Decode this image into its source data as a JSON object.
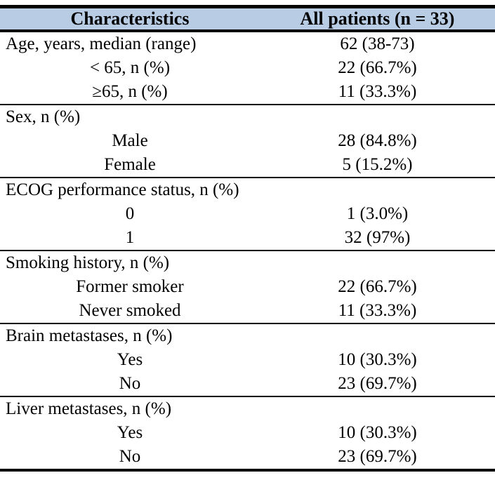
{
  "colors": {
    "header_bg": "#b8cce4",
    "border": "#000000",
    "text": "#000000"
  },
  "table": {
    "header": {
      "characteristics": "Characteristics",
      "all_patients": "All patients (n = 33)"
    },
    "sections": [
      {
        "rows": [
          {
            "label": "Age, years, median (range)",
            "value": "62 (38-73)",
            "sub": false
          },
          {
            "label": "< 65, n (%)",
            "value": "22 (66.7%)",
            "sub": true
          },
          {
            "label": "≥65, n (%)",
            "value": "11 (33.3%)",
            "sub": true
          }
        ]
      },
      {
        "rows": [
          {
            "label": "Sex, n (%)",
            "value": "",
            "sub": false
          },
          {
            "label": "Male",
            "value": "28 (84.8%)",
            "sub": true
          },
          {
            "label": "Female",
            "value": "5 (15.2%)",
            "sub": true
          }
        ]
      },
      {
        "rows": [
          {
            "label": "ECOG performance status, n (%)",
            "value": "",
            "sub": false
          },
          {
            "label": "0",
            "value": "1 (3.0%)",
            "sub": true
          },
          {
            "label": "1",
            "value": "32 (97%)",
            "sub": true
          }
        ]
      },
      {
        "rows": [
          {
            "label": "Smoking history, n (%)",
            "value": "",
            "sub": false
          },
          {
            "label": "Former smoker",
            "value": "22 (66.7%)",
            "sub": true
          },
          {
            "label": "Never smoked",
            "value": "11 (33.3%)",
            "sub": true
          }
        ]
      },
      {
        "rows": [
          {
            "label": "Brain metastases, n (%)",
            "value": "",
            "sub": false
          },
          {
            "label": "Yes",
            "value": "10 (30.3%)",
            "sub": true
          },
          {
            "label": "No",
            "value": "23 (69.7%)",
            "sub": true
          }
        ]
      },
      {
        "rows": [
          {
            "label": "Liver metastases, n (%)",
            "value": "",
            "sub": false
          },
          {
            "label": "Yes",
            "value": "10 (30.3%)",
            "sub": true
          },
          {
            "label": "No",
            "value": "23 (69.7%)",
            "sub": true
          }
        ]
      }
    ]
  }
}
